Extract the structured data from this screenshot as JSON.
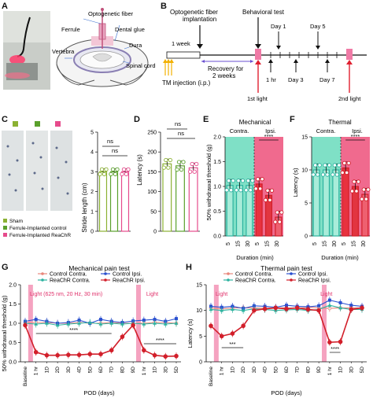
{
  "letters": {
    "A": "A",
    "B": "B",
    "C": "C",
    "D": "D",
    "E": "E",
    "F": "F",
    "G": "G",
    "H": "H"
  },
  "panelA": {
    "labels": {
      "fiber": "Optogenetic fiber",
      "ferrule": "Ferrule",
      "glue": "Dental glue",
      "vertebra": "Vertebra",
      "dura": "Dura",
      "cord": "Spinal cord"
    }
  },
  "panelB": {
    "implant": "Optogenetic fiber",
    "implant2": "implantation",
    "behav": "Behavioral test",
    "week": "1 week",
    "recovery": "Recovery for",
    "recovery2": "2 weeks",
    "tm": "TM injection (i.p.)",
    "day1": "Day 1",
    "day5": "Day 5",
    "hr1": "1 hr",
    "day3": "Day 3",
    "day7": "Day 7",
    "light1": "1st light",
    "light2": "2nd light"
  },
  "panelC": {
    "legend": [
      "Sham",
      "Ferrule-Implanted control",
      "Ferrule-Implanted ReaChR"
    ],
    "colors": [
      "#8bb133",
      "#5aa02c",
      "#e64b8c"
    ],
    "ylabel": "Stride length (cm)",
    "ns1": "ns",
    "ns2": "ns",
    "chart_data": {
      "type": "bar",
      "categories": [
        "Sham",
        "Ferrule-Implanted control",
        "Ferrule-Implanted ReaChR"
      ],
      "values": [
        3.0,
        3.0,
        3.0
      ],
      "ylim": [
        0,
        5
      ],
      "yticks": [
        0,
        1,
        2,
        3,
        4,
        5
      ]
    }
  },
  "panelD": {
    "ylabel": "Latency (s)",
    "ns1": "ns",
    "ns2": "ns",
    "chart_data": {
      "type": "bar",
      "categories": [
        "Sham",
        "Ferrule-Implanted control",
        "Ferrule-Implanted ReaChR"
      ],
      "values": [
        170,
        165,
        160
      ],
      "ylim": [
        0,
        250
      ],
      "yticks": [
        0,
        50,
        100,
        150,
        200,
        250
      ]
    }
  },
  "panelE": {
    "title": "Mechanical",
    "contra": "Contra.",
    "ipsi": "Ipsi.",
    "ylabel": "50% withdrawal threshold (g)",
    "xlabel": "Duration (min)",
    "sig": "****",
    "chart_data": {
      "type": "bar",
      "categories": [
        "5",
        "15",
        "30",
        "5",
        "15",
        "30"
      ],
      "values": [
        1.02,
        1.02,
        1.02,
        1.05,
        0.82,
        0.38
      ],
      "ylim": [
        0,
        2.0
      ],
      "yticks": [
        "0.0",
        "0.5",
        "1.0",
        "1.5",
        "2.0"
      ]
    }
  },
  "panelF": {
    "title": "Thermal",
    "contra": "Contra.",
    "ipsi": "Ipsi.",
    "ylabel": "Latency (s)",
    "xlabel": "Duration (min)",
    "sig": "****",
    "chart_data": {
      "type": "bar",
      "categories": [
        "5",
        "15",
        "30",
        "5",
        "15",
        "30"
      ],
      "values": [
        10,
        10,
        10,
        10.3,
        7.5,
        6.3
      ],
      "ylim": [
        0,
        15
      ],
      "yticks": [
        "0",
        "5",
        "10",
        "15"
      ]
    }
  },
  "panelG": {
    "title": "Mechanical pain test",
    "ylabel": "50% withdrawal threshold (g)",
    "xlabel": "POD (days)",
    "light1": "Light (625 nm, 20 Hz, 30 min)",
    "light2": "Light",
    "sig1": "****",
    "sig2": "****",
    "legend": [
      "Control Contra.",
      "Control Ipsi.",
      "ReaChR Contra.",
      "ReaChR Ipsi."
    ],
    "chart_data": {
      "type": "line",
      "x": [
        "Baseline",
        "1 hr",
        "1D",
        "2D",
        "3D",
        "4D",
        "5D",
        "6D",
        "7D",
        "8D",
        "9D",
        "1 hr",
        "1D",
        "3D",
        "5D"
      ],
      "ylim": [
        0,
        2.0
      ],
      "yticks": [
        "0.0",
        "0.5",
        "1.0",
        "1.5",
        "2.0"
      ],
      "series": [
        {
          "name": "Control Contra.",
          "color": "#e9877b",
          "values": [
            1.02,
            1.02,
            1.02,
            1.0,
            1.0,
            1.02,
            1.0,
            1.0,
            1.02,
            1.0,
            1.0,
            1.0,
            1.02,
            1.02,
            1.0
          ]
        },
        {
          "name": "Control Ipsi.",
          "color": "#2a4fd0",
          "values": [
            1.05,
            1.1,
            1.05,
            1.0,
            1.02,
            1.08,
            1.0,
            1.1,
            1.05,
            1.02,
            1.06,
            1.08,
            1.1,
            1.05,
            1.12
          ]
        },
        {
          "name": "ReaChR Contra.",
          "color": "#2db3a0",
          "values": [
            1.0,
            0.98,
            1.0,
            0.95,
            0.98,
            1.0,
            1.02,
            0.98,
            1.0,
            0.98,
            1.0,
            0.98,
            1.0,
            0.98,
            1.0
          ]
        },
        {
          "name": "ReaChR Ipsi.",
          "color": "#d21f2a",
          "values": [
            0.95,
            0.25,
            0.17,
            0.17,
            0.18,
            0.18,
            0.2,
            0.2,
            0.3,
            0.65,
            0.95,
            0.3,
            0.17,
            0.14,
            0.15
          ]
        }
      ]
    }
  },
  "panelH": {
    "title": "Thermal pain test",
    "ylabel": "Latency (s)",
    "xlabel": "POD (days)",
    "light1": "Light",
    "light2": "Light",
    "sig1": "***",
    "sig2": "****",
    "legend": [
      "Control Contra.",
      "Control Ipsi.",
      "ReaChR Contra.",
      "ReaChR Ipsi."
    ],
    "chart_data": {
      "type": "line",
      "x": [
        "Baseline",
        "1 hr",
        "1D",
        "2D",
        "3D",
        "4D",
        "5D",
        "6D",
        "7D",
        "8D",
        "9D",
        "1 hr",
        "1D",
        "3D",
        "5D"
      ],
      "ylim": [
        0,
        15
      ],
      "yticks": [
        "0",
        "5",
        "10",
        "15"
      ],
      "series": [
        {
          "name": "Control Contra.",
          "color": "#e9877b",
          "values": [
            10.5,
            10.3,
            10.5,
            10.5,
            10.5,
            10.4,
            10.5,
            10.5,
            10.4,
            10.6,
            10.5,
            10.4,
            10.5,
            10.5,
            10.5
          ]
        },
        {
          "name": "Control Ipsi.",
          "color": "#2a4fd0",
          "values": [
            10.8,
            10.6,
            10.8,
            10.4,
            10.9,
            10.8,
            10.6,
            11.0,
            10.8,
            10.7,
            10.9,
            12.0,
            11.5,
            11.0,
            10.8
          ]
        },
        {
          "name": "ReaChR Contra.",
          "color": "#2db3a0",
          "values": [
            10.2,
            10.0,
            10.2,
            10.0,
            10.3,
            10.2,
            10.0,
            10.1,
            10.2,
            10.0,
            10.2,
            11.0,
            10.5,
            10.2,
            10.2
          ]
        },
        {
          "name": "ReaChR Ipsi.",
          "color": "#d21f2a",
          "values": [
            7.0,
            5.0,
            5.5,
            7.0,
            10.0,
            10.3,
            10.5,
            10.3,
            10.5,
            10.2,
            10.0,
            3.8,
            3.9,
            10.2,
            10.5
          ]
        }
      ]
    }
  }
}
